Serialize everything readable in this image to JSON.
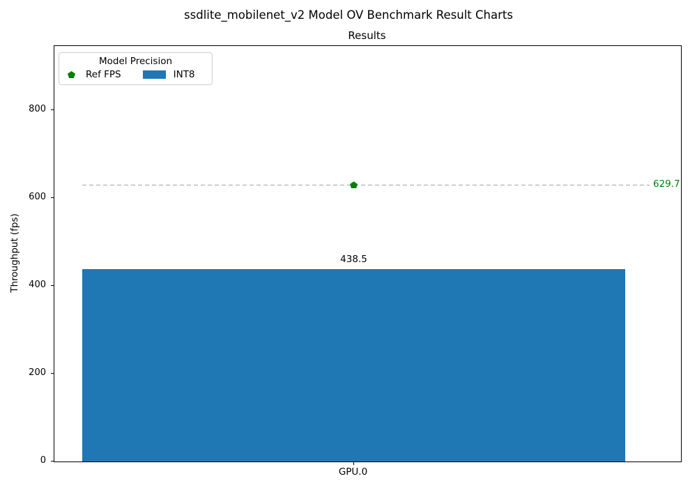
{
  "figure": {
    "title": "ssdlite_mobilenet_v2 Model OV Benchmark Result Charts"
  },
  "chart_data": {
    "type": "bar",
    "title": "Results",
    "xlabel": "",
    "ylabel": "Throughput (fps)",
    "categories": [
      "GPU.0"
    ],
    "series": [
      {
        "name": "INT8",
        "kind": "bar",
        "values": [
          438.5
        ],
        "color": "#1f77b4"
      },
      {
        "name": "Ref FPS",
        "kind": "reference-line",
        "values": [
          629.7
        ],
        "color": "#008000",
        "line_color": "#a3a3a3",
        "line_style": "dashed",
        "marker": "pentagon"
      }
    ],
    "ylim": [
      0,
      946
    ],
    "yticks": [
      0,
      200,
      400,
      600,
      800
    ],
    "grid": false,
    "legend": {
      "title": "Model Precision",
      "position": "upper-left",
      "items": [
        {
          "label": "Ref FPS",
          "marker": "pentagon",
          "color": "#008000"
        },
        {
          "label": "INT8",
          "marker": "rect",
          "color": "#1f77b4"
        }
      ]
    }
  }
}
